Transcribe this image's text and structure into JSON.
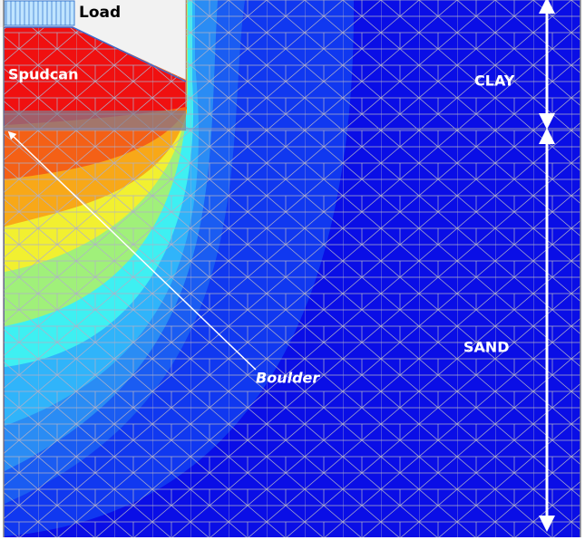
{
  "labels": {
    "load": "Load",
    "spudcan": "Spudcan",
    "clay": "CLAY",
    "sand": "SAND",
    "boulder": "Boulder"
  }
}
